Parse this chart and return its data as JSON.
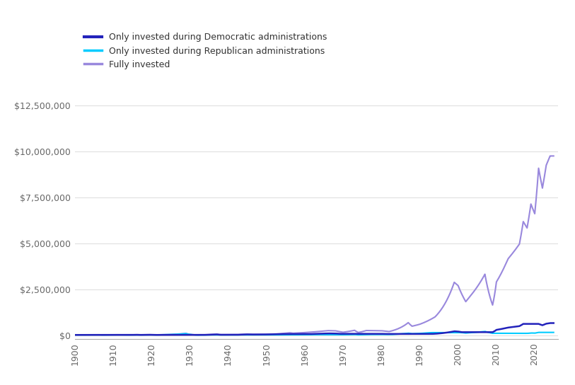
{
  "legend": [
    {
      "label": "Only invested during Democratic administrations",
      "color": "#1a1aee",
      "lw": 2.0
    },
    {
      "label": "Only invested during Republican administrations",
      "color": "#00ccff",
      "lw": 1.5
    },
    {
      "label": "Fully invested",
      "color": "#8866dd",
      "lw": 1.5
    }
  ],
  "xlim": [
    1900,
    2026
  ],
  "ylim": [
    -200000,
    13000000
  ],
  "yticks": [
    0,
    2500000,
    5000000,
    7500000,
    10000000,
    12500000
  ],
  "ytick_labels": [
    "$0",
    "$2,500,000",
    "$5,000,000",
    "$7,500,000",
    "$10,000,000",
    "$12,500,000"
  ],
  "xticks": [
    1900,
    1910,
    1920,
    1930,
    1940,
    1950,
    1960,
    1970,
    1980,
    1990,
    2000,
    2010,
    2020
  ],
  "background_color": "#ffffff",
  "grid_color": "#e0e0e0",
  "dem_color": "#2222bb",
  "rep_color": "#00ccff",
  "full_color": "#9988dd"
}
